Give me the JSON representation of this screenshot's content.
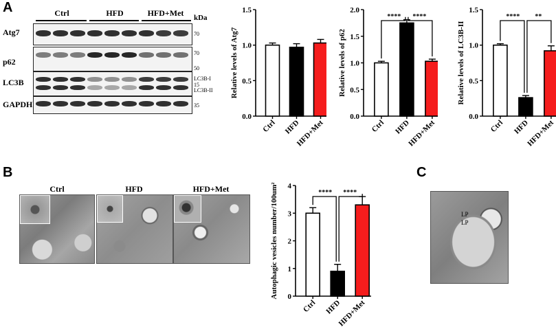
{
  "panels": {
    "a": "A",
    "b": "B",
    "c": "C"
  },
  "blot": {
    "groups": [
      "Ctrl",
      "HFD",
      "HFD+Met"
    ],
    "kda_label": "kDa",
    "rows": [
      {
        "label": "Atg7",
        "markers": [
          "70"
        ]
      },
      {
        "label": "p62",
        "markers": [
          "70",
          "50"
        ]
      },
      {
        "label": "LC3B",
        "markers": [
          "LC3B-I",
          "15",
          "LC3B-II"
        ]
      },
      {
        "label": "GAPDH",
        "markers": [
          "35"
        ]
      }
    ]
  },
  "em": {
    "titles": [
      "Ctrl",
      "HFD",
      "HFD+Met"
    ],
    "c_labels": [
      "LP",
      "LP"
    ]
  },
  "colors": {
    "ctrl": "#ffffff",
    "hfd": "#000000",
    "met": "#f51d1d"
  },
  "chart_data": [
    {
      "type": "bar",
      "categories": [
        "Ctrl",
        "HFD",
        "HFD+Met"
      ],
      "values": [
        1.0,
        0.97,
        1.03
      ],
      "errors": [
        0.03,
        0.05,
        0.05
      ],
      "ylabel": "Relative levels of Atg7",
      "ylim": [
        0,
        1.5
      ],
      "yticks": [
        "0.0",
        "0.5",
        "1.0",
        "1.5"
      ],
      "significance": []
    },
    {
      "type": "bar",
      "categories": [
        "Ctrl",
        "HFD",
        "HFD+Met"
      ],
      "values": [
        1.0,
        1.75,
        1.03
      ],
      "errors": [
        0.03,
        0.06,
        0.04
      ],
      "ylabel": "Relative levels of p62",
      "ylim": [
        0,
        2.0
      ],
      "yticks": [
        "0.0",
        "0.5",
        "1.0",
        "1.5",
        "2.0"
      ],
      "significance": [
        {
          "from": 0,
          "to": 1,
          "label": "****"
        },
        {
          "from": 1,
          "to": 2,
          "label": "****"
        }
      ]
    },
    {
      "type": "bar",
      "categories": [
        "Ctrl",
        "HFD",
        "HFD+Met"
      ],
      "values": [
        1.0,
        0.26,
        0.92
      ],
      "errors": [
        0.02,
        0.03,
        0.07
      ],
      "ylabel": "Relative levels of LC3B-II",
      "ylim": [
        0,
        1.5
      ],
      "yticks": [
        "0.0",
        "0.5",
        "1.0",
        "1.5"
      ],
      "significance": [
        {
          "from": 0,
          "to": 1,
          "label": "****"
        },
        {
          "from": 1,
          "to": 2,
          "label": "**"
        }
      ]
    },
    {
      "type": "bar",
      "categories": [
        "Ctrl",
        "HFD",
        "HFD+Met"
      ],
      "values": [
        3.0,
        0.9,
        3.3
      ],
      "errors": [
        0.2,
        0.25,
        0.3
      ],
      "ylabel": "Autophagic vesicles number/100um²",
      "ylim": [
        0,
        4
      ],
      "yticks": [
        "0",
        "1",
        "2",
        "3",
        "4"
      ],
      "significance": [
        {
          "from": 0,
          "to": 1,
          "label": "****"
        },
        {
          "from": 1,
          "to": 2,
          "label": "****"
        }
      ]
    }
  ]
}
